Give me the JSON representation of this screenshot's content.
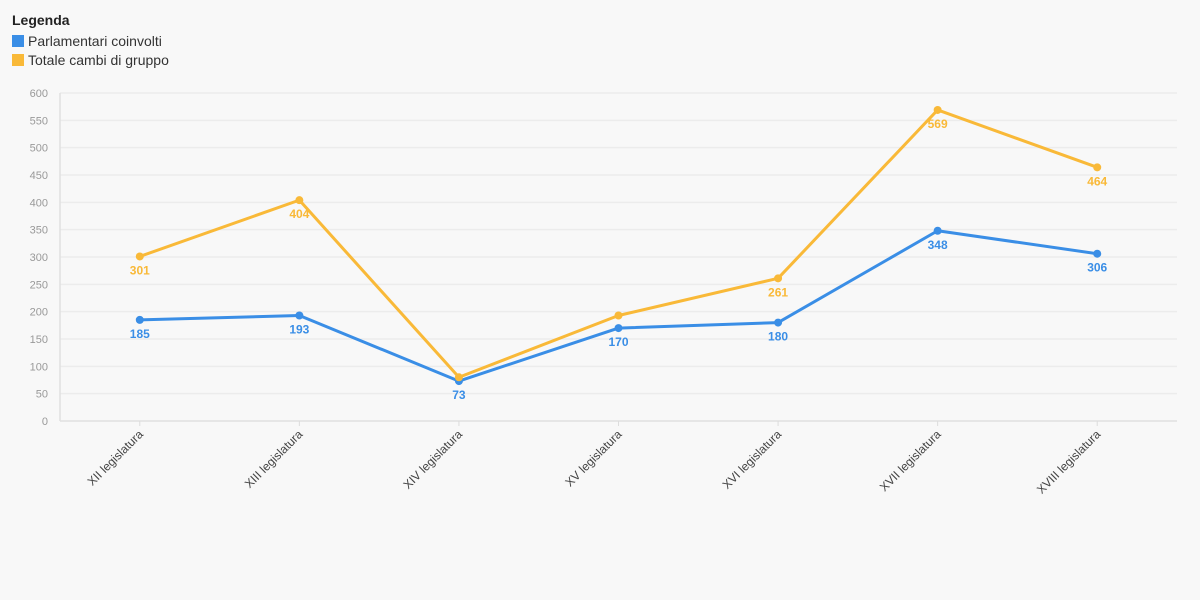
{
  "legend": {
    "title": "Legenda"
  },
  "chart_data": {
    "type": "line",
    "categories": [
      "XII legislatura",
      "XIII legislatura",
      "XIV legislatura",
      "XV legislatura",
      "XVI legislatura",
      "XVII legislatura",
      "XVIII legislatura"
    ],
    "series": [
      {
        "name": "Parlamentari coinvolti",
        "values": [
          185,
          193,
          73,
          170,
          180,
          348,
          306
        ],
        "color": "#3a8ee6"
      },
      {
        "name": "Totale cambi di gruppo",
        "values": [
          301,
          404,
          80,
          193,
          261,
          569,
          464
        ],
        "color": "#f9b938"
      }
    ],
    "data_labels": [
      [
        185,
        193,
        73,
        170,
        180,
        348,
        306
      ],
      [
        301,
        404,
        null,
        null,
        261,
        569,
        464
      ]
    ],
    "ylim": [
      0,
      600
    ],
    "yticks": [
      0,
      50,
      100,
      150,
      200,
      250,
      300,
      350,
      400,
      450,
      500,
      550,
      600
    ],
    "grid": true,
    "legend_position": "top-left",
    "xlabel": "",
    "ylabel": "",
    "title": ""
  }
}
